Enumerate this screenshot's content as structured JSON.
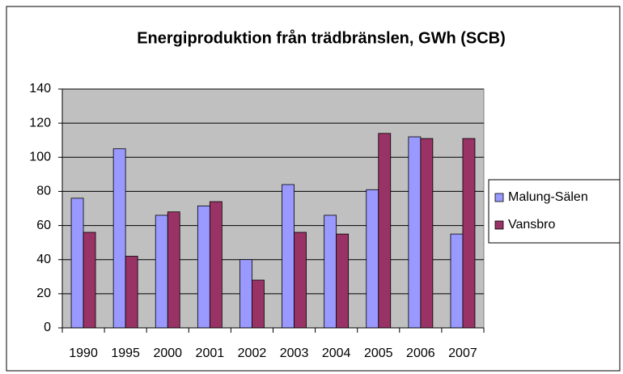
{
  "chart_data": {
    "type": "bar",
    "title": "Energiproduktion från trädbränslen, GWh (SCB)",
    "categories": [
      "1990",
      "1995",
      "2000",
      "2001",
      "2002",
      "2003",
      "2004",
      "2005",
      "2006",
      "2007"
    ],
    "series": [
      {
        "name": "Malung-Sälen",
        "color": "#9999ff",
        "values": [
          76,
          105,
          66,
          71.5,
          40,
          84,
          66,
          81,
          112,
          55
        ]
      },
      {
        "name": "Vansbro",
        "color": "#993366",
        "values": [
          56,
          42,
          68,
          74,
          28,
          56,
          55,
          114,
          111,
          111
        ]
      }
    ],
    "ylim": [
      0,
      140
    ],
    "yticks": [
      0,
      20,
      40,
      60,
      80,
      100,
      120,
      140
    ],
    "grid": true,
    "legend": "right"
  }
}
